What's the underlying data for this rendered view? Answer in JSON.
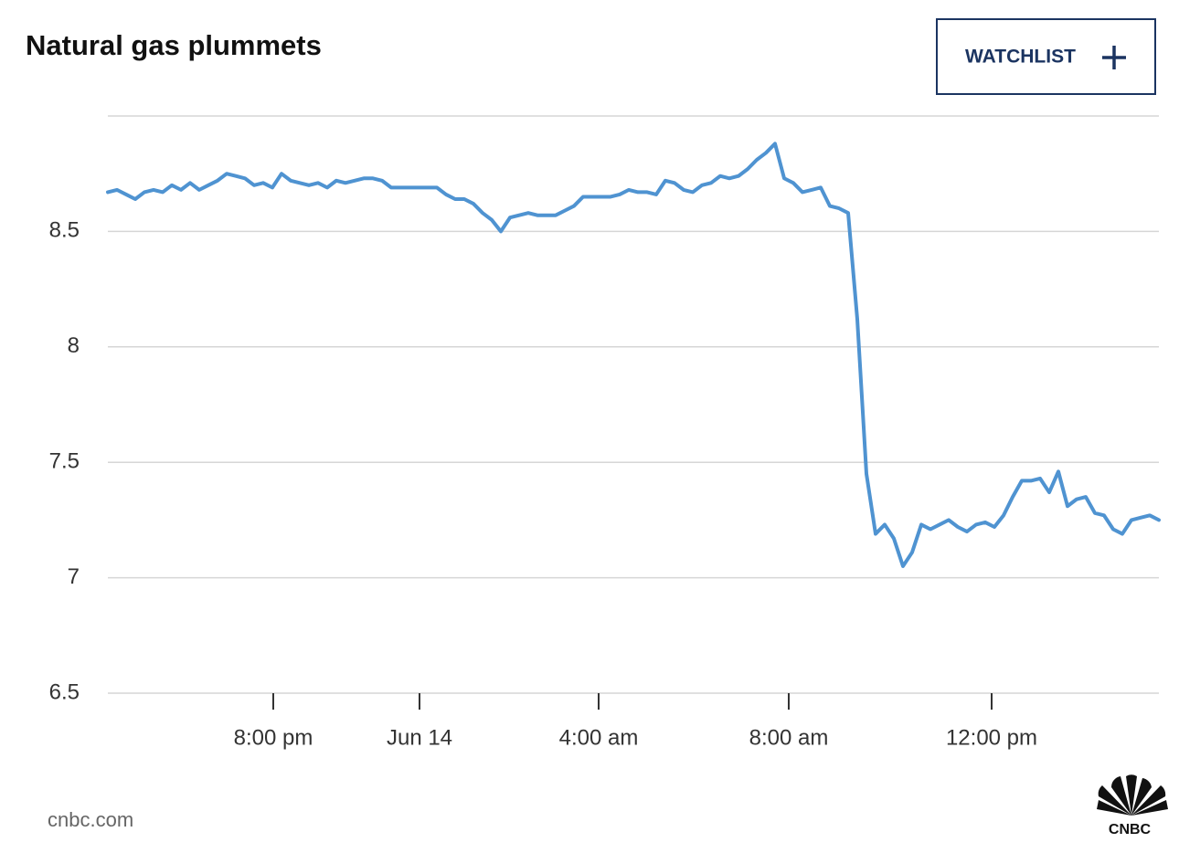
{
  "chart_data": {
    "type": "line",
    "title": "Natural gas plummets",
    "x": [
      0,
      1,
      2,
      3,
      4,
      5,
      6,
      7,
      8,
      9,
      10,
      11,
      12,
      13,
      14,
      15,
      16,
      17,
      18,
      19,
      20,
      21,
      22,
      23,
      24,
      25,
      26,
      27,
      28,
      29,
      30,
      31,
      32,
      33,
      34,
      35,
      36,
      37,
      38,
      39,
      40,
      41,
      42,
      43,
      44,
      45,
      46,
      47,
      48,
      49,
      50,
      51,
      52,
      53,
      54,
      55,
      56,
      57,
      58,
      59,
      60,
      61,
      62,
      63,
      64,
      65,
      66,
      67,
      68,
      69,
      70,
      71,
      72,
      73,
      74,
      75,
      76,
      77,
      78,
      79,
      80,
      81,
      82,
      83,
      84,
      85,
      86,
      87,
      88,
      89,
      90,
      91,
      92,
      93,
      94,
      95,
      96,
      97,
      98,
      99,
      100,
      101,
      102,
      103,
      104,
      105,
      106,
      107,
      108,
      109,
      110,
      111,
      112,
      113,
      114,
      115
    ],
    "values": [
      8.67,
      8.68,
      8.66,
      8.64,
      8.67,
      8.68,
      8.67,
      8.7,
      8.68,
      8.71,
      8.68,
      8.7,
      8.72,
      8.75,
      8.74,
      8.73,
      8.7,
      8.71,
      8.69,
      8.75,
      8.72,
      8.71,
      8.7,
      8.71,
      8.69,
      8.72,
      8.71,
      8.72,
      8.73,
      8.73,
      8.72,
      8.69,
      8.69,
      8.69,
      8.69,
      8.69,
      8.69,
      8.66,
      8.64,
      8.64,
      8.62,
      8.58,
      8.55,
      8.5,
      8.56,
      8.57,
      8.58,
      8.57,
      8.57,
      8.57,
      8.59,
      8.61,
      8.65,
      8.65,
      8.65,
      8.65,
      8.66,
      8.68,
      8.67,
      8.67,
      8.66,
      8.72,
      8.71,
      8.68,
      8.67,
      8.7,
      8.71,
      8.74,
      8.73,
      8.74,
      8.77,
      8.81,
      8.84,
      8.88,
      8.73,
      8.71,
      8.67,
      8.68,
      8.69,
      8.61,
      8.6,
      8.58,
      8.12,
      7.45,
      7.19,
      7.23,
      7.17,
      7.05,
      7.11,
      7.23,
      7.21,
      7.23,
      7.25,
      7.22,
      7.2,
      7.23,
      7.24,
      7.22,
      7.27,
      7.35,
      7.42,
      7.42,
      7.43,
      7.37,
      7.46,
      7.31,
      7.34,
      7.35,
      7.28,
      7.27,
      7.21,
      7.19,
      7.25,
      7.26,
      7.27,
      7.25
    ],
    "color": "#4f93d1",
    "xlim": [
      0,
      115
    ],
    "xticks": [
      {
        "value": 18.1,
        "label": "8:00 pm"
      },
      {
        "value": 34.1,
        "label": "Jun 14"
      },
      {
        "value": 53.7,
        "label": "4:00 am"
      },
      {
        "value": 74.5,
        "label": "8:00 am"
      },
      {
        "value": 96.7,
        "label": "12:00 pm"
      }
    ],
    "ylim": [
      6.5,
      9
    ],
    "yticks": [
      6.5,
      7,
      7.5,
      8,
      8.5
    ],
    "grid": true
  },
  "button": "WATCHLIST",
  "source": "cnbc.com",
  "logo": "CNBC"
}
